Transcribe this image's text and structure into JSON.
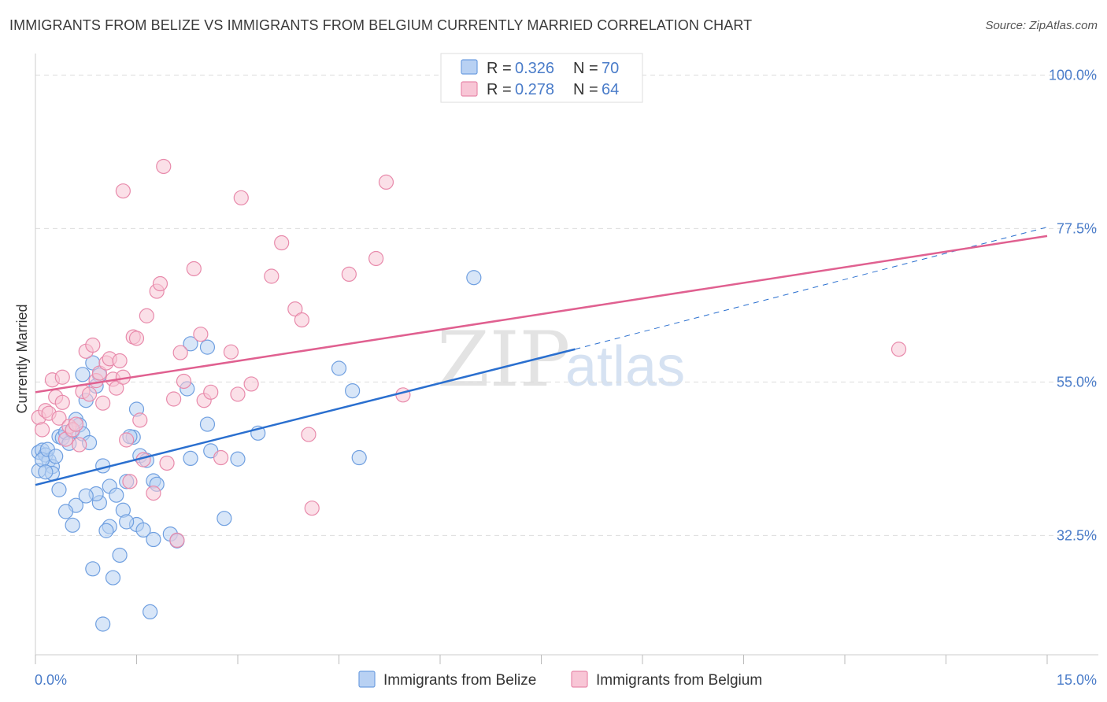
{
  "header": {
    "title": "IMMIGRANTS FROM BELIZE VS IMMIGRANTS FROM BELGIUM CURRENTLY MARRIED CORRELATION CHART",
    "source": "Source: ZipAtlas.com"
  },
  "watermark": {
    "zip": "ZIP",
    "atlas": "atlas"
  },
  "legend_top": [
    {
      "r_label": "R =",
      "r_value": "0.326",
      "n_label": "N =",
      "n_value": "70"
    },
    {
      "r_label": "R =",
      "r_value": "0.278",
      "n_label": "N =",
      "n_value": "64"
    }
  ],
  "colors": {
    "belize_fill": "#b8d1f3",
    "belize_stroke": "#6f9fe0",
    "belize_line": "#2a6fcf",
    "belgium_fill": "#f8c6d6",
    "belgium_stroke": "#e88aab",
    "belgium_line": "#e06090",
    "tick_text": "#4a7cc9",
    "grid": "#dddddd"
  },
  "chart_data": {
    "type": "scatter",
    "xlabel": "",
    "ylabel": "Currently Married",
    "xlim": [
      0,
      15
    ],
    "ylim": [
      15,
      102
    ],
    "x_ticks": [
      "0.0%",
      "15.0%"
    ],
    "y_ticks": [
      {
        "value": 100,
        "label": "100.0%"
      },
      {
        "value": 77.5,
        "label": "77.5%"
      },
      {
        "value": 55,
        "label": "55.0%"
      },
      {
        "value": 32.5,
        "label": "32.5%"
      }
    ],
    "grid": true,
    "legend_placement": "bottom-center",
    "series": [
      {
        "name": "Immigrants from Belize",
        "trend": {
          "x": [
            0,
            8.0
          ],
          "y": [
            39.9,
            59.8
          ],
          "dashed_to": [
            15,
            77.7
          ]
        },
        "points": [
          [
            0.05,
            44.7
          ],
          [
            0.1,
            45.0
          ],
          [
            0.15,
            44.3
          ],
          [
            0.2,
            43.5
          ],
          [
            0.25,
            42.6
          ],
          [
            0.05,
            42.0
          ],
          [
            0.1,
            43.6
          ],
          [
            0.18,
            45.1
          ],
          [
            0.3,
            44.1
          ],
          [
            0.35,
            47.0
          ],
          [
            0.4,
            46.8
          ],
          [
            0.45,
            47.6
          ],
          [
            0.5,
            46.0
          ],
          [
            0.55,
            47.8
          ],
          [
            0.6,
            49.5
          ],
          [
            0.65,
            48.7
          ],
          [
            0.7,
            47.4
          ],
          [
            0.75,
            52.3
          ],
          [
            0.7,
            56.1
          ],
          [
            0.8,
            46.1
          ],
          [
            0.95,
            56.0
          ],
          [
            0.9,
            54.4
          ],
          [
            0.85,
            57.8
          ],
          [
            1.0,
            42.7
          ],
          [
            1.1,
            39.7
          ],
          [
            1.2,
            38.4
          ],
          [
            1.35,
            40.4
          ],
          [
            1.5,
            51.0
          ],
          [
            1.45,
            46.9
          ],
          [
            1.55,
            44.2
          ],
          [
            1.65,
            43.5
          ],
          [
            1.75,
            40.5
          ],
          [
            1.8,
            40.0
          ],
          [
            1.4,
            47.0
          ],
          [
            1.5,
            34.1
          ],
          [
            1.3,
            36.2
          ],
          [
            1.1,
            33.8
          ],
          [
            1.05,
            33.2
          ],
          [
            0.95,
            37.3
          ],
          [
            0.9,
            38.6
          ],
          [
            0.75,
            38.3
          ],
          [
            0.6,
            36.9
          ],
          [
            0.45,
            36.0
          ],
          [
            0.35,
            39.2
          ],
          [
            0.25,
            41.6
          ],
          [
            0.55,
            34.0
          ],
          [
            1.25,
            29.6
          ],
          [
            1.15,
            26.3
          ],
          [
            0.85,
            27.6
          ],
          [
            1.6,
            33.3
          ],
          [
            1.75,
            31.9
          ],
          [
            2.0,
            32.7
          ],
          [
            2.1,
            31.7
          ],
          [
            2.3,
            43.8
          ],
          [
            2.55,
            48.8
          ],
          [
            2.3,
            60.6
          ],
          [
            2.25,
            54.0
          ],
          [
            2.55,
            60.1
          ],
          [
            2.6,
            44.9
          ],
          [
            2.8,
            35.0
          ],
          [
            3.0,
            43.7
          ],
          [
            3.3,
            47.5
          ],
          [
            4.5,
            57.0
          ],
          [
            4.7,
            53.7
          ],
          [
            4.8,
            43.9
          ],
          [
            6.5,
            70.3
          ],
          [
            1.0,
            19.5
          ],
          [
            1.7,
            21.3
          ],
          [
            1.35,
            34.5
          ],
          [
            0.15,
            41.8
          ]
        ]
      },
      {
        "name": "Immigrants from Belgium",
        "trend": {
          "x": [
            0,
            15
          ],
          "y": [
            53.5,
            76.4
          ]
        },
        "points": [
          [
            0.05,
            49.8
          ],
          [
            0.1,
            48.0
          ],
          [
            0.15,
            50.8
          ],
          [
            0.2,
            50.4
          ],
          [
            0.25,
            55.3
          ],
          [
            0.3,
            52.8
          ],
          [
            0.35,
            49.7
          ],
          [
            0.4,
            52.0
          ],
          [
            0.45,
            46.6
          ],
          [
            0.5,
            48.5
          ],
          [
            0.55,
            48.0
          ],
          [
            0.6,
            48.8
          ],
          [
            0.65,
            45.8
          ],
          [
            0.7,
            53.6
          ],
          [
            0.8,
            53.2
          ],
          [
            0.75,
            59.5
          ],
          [
            0.85,
            60.4
          ],
          [
            0.9,
            55.2
          ],
          [
            0.95,
            56.3
          ],
          [
            1.0,
            51.9
          ],
          [
            1.05,
            57.8
          ],
          [
            1.1,
            58.4
          ],
          [
            1.15,
            55.4
          ],
          [
            1.2,
            54.1
          ],
          [
            1.25,
            58.1
          ],
          [
            1.3,
            55.7
          ],
          [
            1.35,
            46.5
          ],
          [
            1.45,
            61.6
          ],
          [
            1.5,
            61.4
          ],
          [
            1.4,
            40.4
          ],
          [
            1.55,
            49.4
          ],
          [
            1.6,
            43.6
          ],
          [
            1.75,
            38.7
          ],
          [
            1.8,
            68.3
          ],
          [
            1.85,
            69.4
          ],
          [
            1.95,
            43.1
          ],
          [
            1.65,
            64.7
          ],
          [
            2.05,
            52.5
          ],
          [
            2.15,
            59.3
          ],
          [
            2.2,
            55.1
          ],
          [
            2.35,
            71.6
          ],
          [
            2.5,
            52.3
          ],
          [
            2.45,
            62.0
          ],
          [
            2.6,
            53.5
          ],
          [
            2.75,
            43.9
          ],
          [
            2.9,
            59.4
          ],
          [
            3.0,
            53.2
          ],
          [
            3.2,
            54.7
          ],
          [
            3.05,
            82.0
          ],
          [
            3.5,
            70.5
          ],
          [
            3.65,
            75.4
          ],
          [
            3.85,
            65.7
          ],
          [
            3.95,
            64.1
          ],
          [
            4.05,
            47.3
          ],
          [
            4.1,
            36.5
          ],
          [
            5.05,
            73.1
          ],
          [
            5.2,
            84.3
          ],
          [
            5.45,
            53.1
          ],
          [
            12.8,
            59.8
          ],
          [
            1.3,
            83.0
          ],
          [
            1.9,
            86.6
          ],
          [
            4.65,
            70.8
          ],
          [
            2.1,
            31.8
          ],
          [
            0.4,
            55.7
          ]
        ]
      }
    ]
  }
}
